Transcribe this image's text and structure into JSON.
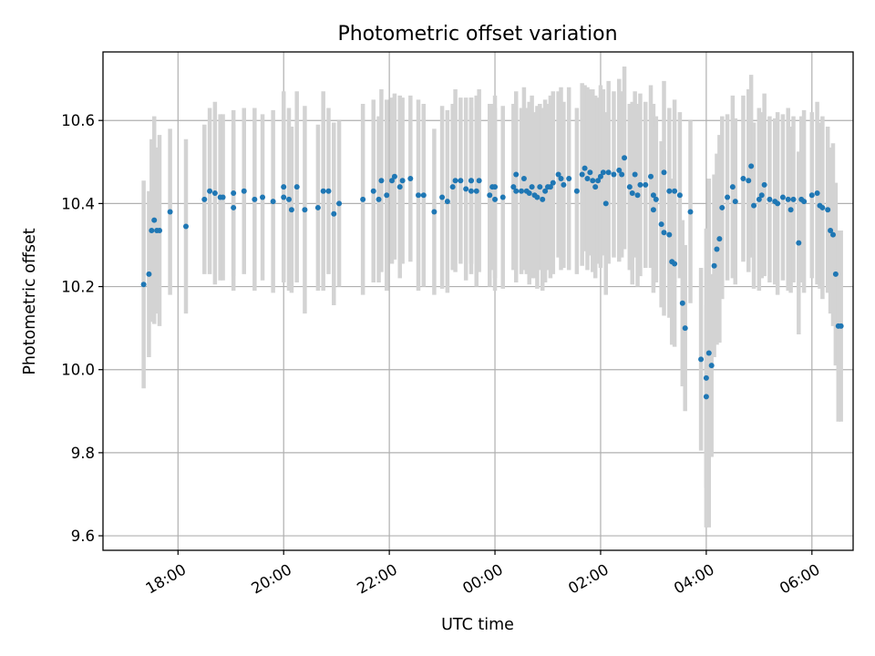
{
  "chart_data": {
    "type": "scatter",
    "title": "Photometric offset variation",
    "xlabel": "UTC time",
    "ylabel": "Photometric offset",
    "x_unit": "hours since 00:00 UTC",
    "xlim": [
      -7.42,
      6.78
    ],
    "ylim": [
      9.565,
      10.765
    ],
    "grid": true,
    "y_ticks": [
      {
        "value": 9.6,
        "label": "9.6"
      },
      {
        "value": 9.8,
        "label": "9.8"
      },
      {
        "value": 10.0,
        "label": "10.0"
      },
      {
        "value": 10.2,
        "label": "10.2"
      },
      {
        "value": 10.4,
        "label": "10.4"
      },
      {
        "value": 10.6,
        "label": "10.6"
      }
    ],
    "x_ticks": [
      {
        "value": -6,
        "label": "18:00"
      },
      {
        "value": -4,
        "label": "20:00"
      },
      {
        "value": -2,
        "label": "22:00"
      },
      {
        "value": 0,
        "label": "00:00"
      },
      {
        "value": 2,
        "label": "02:00"
      },
      {
        "value": 4,
        "label": "04:00"
      },
      {
        "value": 6,
        "label": "06:00"
      }
    ],
    "colors": {
      "points": "#1f77b4",
      "errorbars": "#d3d3d3",
      "grid": "#b0b0b0"
    },
    "series": [
      {
        "name": "offset",
        "points": [
          [
            -6.65,
            10.205,
            0.25
          ],
          [
            -6.55,
            10.23,
            0.2
          ],
          [
            -6.5,
            10.335,
            0.22
          ],
          [
            -6.45,
            10.36,
            0.25
          ],
          [
            -6.4,
            10.335,
            0.2
          ],
          [
            -6.35,
            10.335,
            0.23
          ],
          [
            -6.15,
            10.38,
            0.2
          ],
          [
            -5.85,
            10.345,
            0.21
          ],
          [
            -5.5,
            10.41,
            0.18
          ],
          [
            -5.4,
            10.43,
            0.2
          ],
          [
            -5.3,
            10.425,
            0.22
          ],
          [
            -5.2,
            10.415,
            0.2
          ],
          [
            -5.15,
            10.415,
            0.2
          ],
          [
            -4.95,
            10.425,
            0.2
          ],
          [
            -4.95,
            10.39,
            0.2
          ],
          [
            -4.75,
            10.43,
            0.2
          ],
          [
            -4.55,
            10.41,
            0.22
          ],
          [
            -4.4,
            10.415,
            0.2
          ],
          [
            -4.2,
            10.405,
            0.22
          ],
          [
            -4.0,
            10.44,
            0.23
          ],
          [
            -4.0,
            10.415,
            0.2
          ],
          [
            -3.9,
            10.41,
            0.22
          ],
          [
            -3.85,
            10.385,
            0.2
          ],
          [
            -3.75,
            10.44,
            0.23
          ],
          [
            -3.6,
            10.385,
            0.25
          ],
          [
            -3.35,
            10.39,
            0.2
          ],
          [
            -3.25,
            10.43,
            0.24
          ],
          [
            -3.15,
            10.43,
            0.2
          ],
          [
            -3.05,
            10.375,
            0.22
          ],
          [
            -2.95,
            10.4,
            0.2
          ],
          [
            -2.5,
            10.41,
            0.23
          ],
          [
            -2.3,
            10.43,
            0.22
          ],
          [
            -2.2,
            10.41,
            0.2
          ],
          [
            -2.15,
            10.455,
            0.22
          ],
          [
            -2.05,
            10.42,
            0.23
          ],
          [
            -1.95,
            10.455,
            0.2
          ],
          [
            -1.9,
            10.465,
            0.2
          ],
          [
            -1.8,
            10.44,
            0.22
          ],
          [
            -1.75,
            10.455,
            0.2
          ],
          [
            -1.6,
            10.46,
            0.2
          ],
          [
            -1.45,
            10.42,
            0.23
          ],
          [
            -1.35,
            10.42,
            0.22
          ],
          [
            -1.15,
            10.38,
            0.2
          ],
          [
            -1.0,
            10.415,
            0.22
          ],
          [
            -0.9,
            10.405,
            0.22
          ],
          [
            -0.8,
            10.44,
            0.2
          ],
          [
            -0.75,
            10.455,
            0.22
          ],
          [
            -0.65,
            10.455,
            0.2
          ],
          [
            -0.55,
            10.435,
            0.22
          ],
          [
            -0.45,
            10.455,
            0.2
          ],
          [
            -0.35,
            10.43,
            0.23
          ],
          [
            -0.45,
            10.455,
            0.2
          ],
          [
            -0.45,
            10.43,
            0.2
          ],
          [
            -0.3,
            10.455,
            0.22
          ],
          [
            -0.1,
            10.42,
            0.22
          ],
          [
            0.0,
            10.41,
            0.22
          ],
          [
            -0.05,
            10.44,
            0.2
          ],
          [
            0.0,
            10.44,
            0.22
          ],
          [
            0.15,
            10.415,
            0.22
          ],
          [
            0.35,
            10.44,
            0.2
          ],
          [
            0.4,
            10.43,
            0.22
          ],
          [
            0.4,
            10.47,
            0.2
          ],
          [
            0.5,
            10.43,
            0.2
          ],
          [
            0.55,
            10.46,
            0.22
          ],
          [
            0.6,
            10.43,
            0.2
          ],
          [
            0.65,
            10.425,
            0.22
          ],
          [
            0.7,
            10.44,
            0.22
          ],
          [
            0.75,
            10.42,
            0.2
          ],
          [
            0.8,
            10.415,
            0.22
          ],
          [
            0.85,
            10.44,
            0.2
          ],
          [
            0.9,
            10.41,
            0.22
          ],
          [
            0.95,
            10.43,
            0.22
          ],
          [
            1.0,
            10.44,
            0.2
          ],
          [
            1.05,
            10.44,
            0.22
          ],
          [
            1.1,
            10.45,
            0.22
          ],
          [
            1.2,
            10.47,
            0.2
          ],
          [
            1.25,
            10.46,
            0.22
          ],
          [
            1.3,
            10.445,
            0.2
          ],
          [
            1.4,
            10.46,
            0.22
          ],
          [
            1.55,
            10.43,
            0.2
          ],
          [
            1.65,
            10.47,
            0.22
          ],
          [
            1.7,
            10.485,
            0.2
          ],
          [
            1.75,
            10.46,
            0.22
          ],
          [
            1.8,
            10.475,
            0.2
          ],
          [
            1.85,
            10.455,
            0.22
          ],
          [
            1.9,
            10.44,
            0.22
          ],
          [
            1.95,
            10.455,
            0.2
          ],
          [
            2.0,
            10.465,
            0.22
          ],
          [
            2.05,
            10.475,
            0.2
          ],
          [
            2.1,
            10.4,
            0.22
          ],
          [
            2.15,
            10.475,
            0.22
          ],
          [
            2.25,
            10.47,
            0.2
          ],
          [
            2.35,
            10.48,
            0.22
          ],
          [
            2.4,
            10.47,
            0.2
          ],
          [
            2.45,
            10.51,
            0.22
          ],
          [
            2.55,
            10.44,
            0.2
          ],
          [
            2.6,
            10.425,
            0.22
          ],
          [
            2.65,
            10.47,
            0.2
          ],
          [
            2.7,
            10.42,
            0.22
          ],
          [
            2.75,
            10.445,
            0.22
          ],
          [
            2.85,
            10.445,
            0.2
          ],
          [
            2.95,
            10.465,
            0.22
          ],
          [
            3.0,
            10.42,
            0.22
          ],
          [
            3.05,
            10.41,
            0.2
          ],
          [
            3.2,
            10.475,
            0.22
          ],
          [
            3.3,
            10.43,
            0.2
          ],
          [
            3.4,
            10.43,
            0.22
          ],
          [
            3.5,
            10.42,
            0.2
          ],
          [
            3.7,
            10.38,
            0.22
          ],
          [
            3.0,
            10.385,
            0.2
          ],
          [
            3.15,
            10.35,
            0.2
          ],
          [
            3.2,
            10.33,
            0.2
          ],
          [
            3.3,
            10.325,
            0.2
          ],
          [
            3.35,
            10.26,
            0.2
          ],
          [
            3.4,
            10.255,
            0.2
          ],
          [
            3.55,
            10.16,
            0.2
          ],
          [
            3.6,
            10.1,
            0.2
          ],
          [
            3.9,
            10.025,
            0.22
          ],
          [
            4.0,
            9.935,
            0.22
          ],
          [
            4.0,
            9.98,
            0.36
          ],
          [
            4.05,
            10.04,
            0.42
          ],
          [
            4.1,
            10.01,
            0.22
          ],
          [
            4.15,
            10.25,
            0.22
          ],
          [
            4.2,
            10.29,
            0.23
          ],
          [
            4.25,
            10.315,
            0.25
          ],
          [
            4.3,
            10.39,
            0.22
          ],
          [
            4.4,
            10.415,
            0.2
          ],
          [
            4.5,
            10.44,
            0.22
          ],
          [
            4.55,
            10.405,
            0.2
          ],
          [
            4.7,
            10.46,
            0.2
          ],
          [
            4.8,
            10.455,
            0.22
          ],
          [
            4.85,
            10.49,
            0.22
          ],
          [
            4.9,
            10.395,
            0.2
          ],
          [
            5.0,
            10.41,
            0.22
          ],
          [
            5.05,
            10.42,
            0.2
          ],
          [
            5.1,
            10.445,
            0.22
          ],
          [
            5.2,
            10.41,
            0.2
          ],
          [
            5.3,
            10.405,
            0.2
          ],
          [
            5.35,
            10.4,
            0.22
          ],
          [
            5.45,
            10.415,
            0.2
          ],
          [
            5.55,
            10.41,
            0.22
          ],
          [
            5.6,
            10.385,
            0.2
          ],
          [
            5.65,
            10.41,
            0.2
          ],
          [
            5.75,
            10.305,
            0.22
          ],
          [
            5.8,
            10.41,
            0.2
          ],
          [
            5.85,
            10.405,
            0.22
          ],
          [
            6.0,
            10.42,
            0.2
          ],
          [
            6.1,
            10.425,
            0.22
          ],
          [
            6.15,
            10.395,
            0.2
          ],
          [
            6.2,
            10.39,
            0.22
          ],
          [
            6.3,
            10.385,
            0.2
          ],
          [
            6.35,
            10.335,
            0.2
          ],
          [
            6.4,
            10.325,
            0.22
          ],
          [
            6.45,
            10.23,
            0.22
          ],
          [
            6.5,
            10.105,
            0.23
          ],
          [
            6.55,
            10.105,
            0.23
          ]
        ]
      }
    ]
  }
}
